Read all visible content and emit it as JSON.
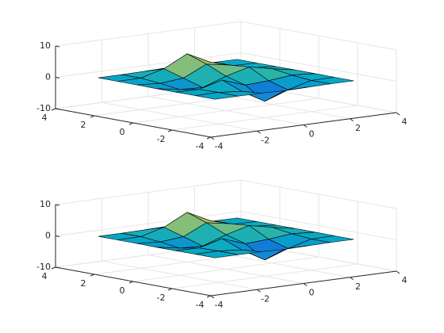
{
  "chart_data": [
    {
      "type": "surface",
      "colormap": "parula",
      "edge_color": "#000000",
      "grid": true,
      "x": [
        -3,
        -2,
        -1,
        0,
        1,
        2,
        3
      ],
      "y": [
        -3,
        -2,
        -1,
        0,
        1,
        2,
        3
      ],
      "z": [
        [
          0,
          0,
          -0.03,
          -0.25,
          -0.11,
          0,
          0
        ],
        [
          0,
          0.05,
          -0.58,
          -4.76,
          -2.09,
          -0.06,
          0
        ],
        [
          -0.01,
          -0.13,
          1.86,
          -0.72,
          -0.27,
          0.5,
          0.01
        ],
        [
          -0.04,
          -1.33,
          -1.65,
          0.98,
          2.94,
          1.41,
          0.03
        ],
        [
          0,
          -0.48,
          0.23,
          3.69,
          2.43,
          0.58,
          0
        ],
        [
          0,
          0.08,
          2.08,
          5.86,
          2.2,
          0.13,
          0
        ],
        [
          0,
          0.01,
          0.11,
          0.3,
          0.11,
          0.01,
          0
        ]
      ],
      "xlim": [
        -4,
        4
      ],
      "ylim": [
        -4,
        4
      ],
      "zlim": [
        -10,
        10
      ],
      "xticks": [
        -4,
        -2,
        0,
        2,
        4
      ],
      "yticks": [
        -4,
        -2,
        0,
        2,
        4
      ],
      "zticks": [
        -10,
        0,
        10
      ]
    },
    {
      "type": "surface",
      "colormap": "parula",
      "edge_color": "#000000",
      "grid": true,
      "x": [
        -3,
        -2,
        -1,
        0,
        1,
        2,
        3
      ],
      "y": [
        -3,
        -2,
        -1,
        0,
        1,
        2,
        3
      ],
      "z": [
        [
          0,
          0,
          -0.03,
          -0.25,
          -0.11,
          0,
          0
        ],
        [
          0,
          0.05,
          -0.58,
          -4.76,
          -2.09,
          -0.06,
          0
        ],
        [
          -0.01,
          -0.13,
          1.86,
          -0.72,
          -0.27,
          0.5,
          0.01
        ],
        [
          -0.04,
          -1.33,
          -1.65,
          0.98,
          2.94,
          1.41,
          0.03
        ],
        [
          0,
          -0.48,
          0.23,
          3.69,
          2.43,
          0.58,
          0
        ],
        [
          0,
          0.08,
          2.08,
          5.86,
          2.2,
          0.13,
          0
        ],
        [
          0,
          0.01,
          0.11,
          0.3,
          0.11,
          0.01,
          0
        ]
      ],
      "xlim": [
        -4,
        4
      ],
      "ylim": [
        -4,
        4
      ],
      "zlim": [
        -10,
        10
      ],
      "xticks": [
        -4,
        -2,
        0,
        2,
        4
      ],
      "yticks": [
        -4,
        -2,
        0,
        2,
        4
      ],
      "zticks": [
        -10,
        0,
        10
      ]
    }
  ]
}
